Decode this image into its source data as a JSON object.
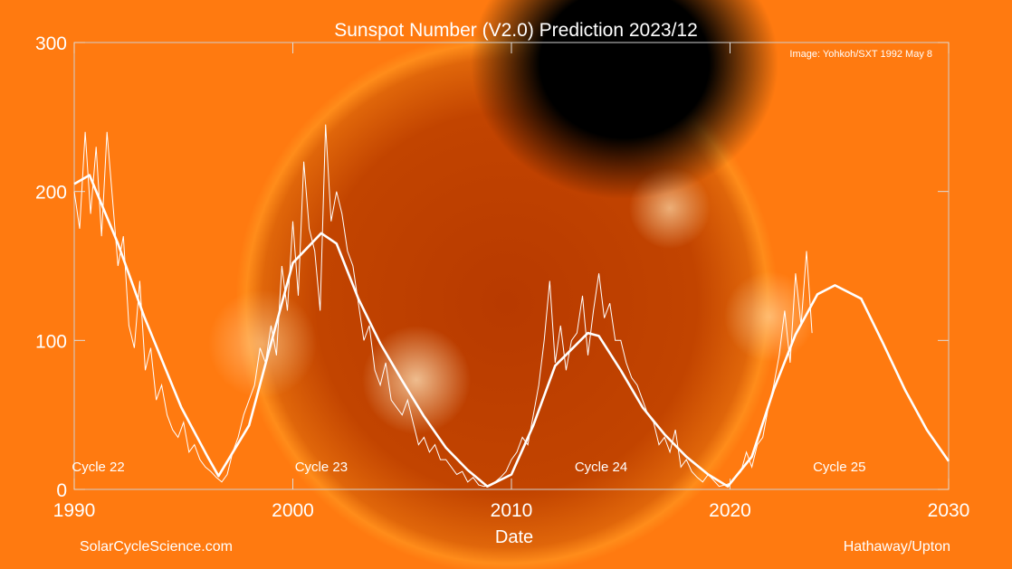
{
  "chart_data": {
    "type": "line",
    "title": "Sunspot Number (V2.0) Prediction 2023/12",
    "xlabel": "Date",
    "ylabel": "",
    "xlim": [
      1990,
      2030
    ],
    "ylim": [
      0,
      300
    ],
    "xticks": [
      "1990",
      "2000",
      "2010",
      "2020",
      "2030"
    ],
    "yticks": [
      "0",
      "100",
      "200",
      "300"
    ],
    "grid": false,
    "line_color": "#ffffff",
    "annotations": {
      "image_credit": "Image: Yohkoh/SXT 1992 May 8",
      "website": "SolarCycleScience.com",
      "authors": "Hathaway/Upton",
      "cycles": [
        {
          "label": "Cycle 22",
          "x": 1991.1
        },
        {
          "label": "Cycle 23",
          "x": 2001.3
        },
        {
          "label": "Cycle 24",
          "x": 2014.1
        },
        {
          "label": "Cycle 25",
          "x": 2025.0
        }
      ]
    },
    "series": [
      {
        "kind": "monthly",
        "x_start": 1990.0,
        "x_step": 0.25,
        "values": [
          200,
          175,
          240,
          185,
          230,
          170,
          240,
          195,
          150,
          170,
          110,
          95,
          140,
          80,
          95,
          60,
          70,
          50,
          40,
          35,
          45,
          25,
          30,
          20,
          15,
          12,
          8,
          5,
          10,
          25,
          35,
          50,
          60,
          70,
          95,
          85,
          110,
          90,
          150,
          120,
          180,
          130,
          220,
          175,
          160,
          120,
          245,
          180,
          200,
          185,
          160,
          150,
          125,
          100,
          110,
          80,
          70,
          85,
          60,
          55,
          50,
          60,
          45,
          30,
          35,
          25,
          30,
          20,
          20,
          15,
          10,
          12,
          5,
          8,
          3,
          2,
          3,
          5,
          8,
          12,
          20,
          25,
          35,
          30,
          50,
          70,
          100,
          140,
          85,
          110,
          80,
          100,
          105,
          130,
          90,
          120,
          145,
          115,
          125,
          100,
          100,
          85,
          75,
          70,
          60,
          50,
          45,
          30,
          35,
          25,
          40,
          15,
          20,
          12,
          8,
          5,
          10,
          6,
          2,
          3,
          4,
          8,
          12,
          25,
          15,
          30,
          35,
          55,
          70,
          90,
          120,
          85,
          145,
          110,
          160,
          105
        ]
      },
      {
        "kind": "smoothed-and-prediction",
        "x": [
          1990,
          1990.7,
          1992,
          1993.2,
          1994.9,
          1996.1,
          1996.6,
          1998,
          1999,
          2000,
          2001.3,
          2002,
          2003,
          2004,
          2005,
          2006,
          2007,
          2008,
          2008.9,
          2010,
          2011,
          2012,
          2013.5,
          2014,
          2015,
          2016,
          2017,
          2018,
          2019,
          2019.9,
          2021,
          2022,
          2023,
          2024,
          2024.8,
          2026,
          2027,
          2028,
          2029,
          2030
        ],
        "y": [
          205,
          211,
          165,
          116,
          55,
          22,
          9,
          43,
          98,
          152,
          172,
          165,
          128,
          98,
          73,
          49,
          28,
          13,
          2,
          10,
          43,
          83,
          105,
          103,
          80,
          55,
          37,
          22,
          10,
          2,
          22,
          67,
          104,
          131,
          137,
          128,
          98,
          67,
          40,
          19
        ]
      }
    ]
  }
}
